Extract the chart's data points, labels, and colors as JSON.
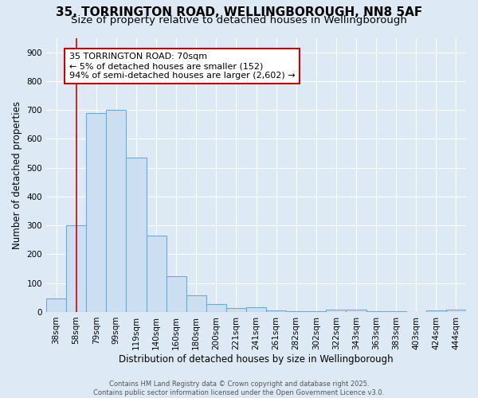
{
  "title_line1": "35, TORRINGTON ROAD, WELLINGBOROUGH, NN8 5AF",
  "title_line2": "Size of property relative to detached houses in Wellingborough",
  "xlabel": "Distribution of detached houses by size in Wellingborough",
  "ylabel": "Number of detached properties",
  "bar_labels": [
    "38sqm",
    "58sqm",
    "79sqm",
    "99sqm",
    "119sqm",
    "140sqm",
    "160sqm",
    "180sqm",
    "200sqm",
    "221sqm",
    "241sqm",
    "261sqm",
    "282sqm",
    "302sqm",
    "322sqm",
    "343sqm",
    "363sqm",
    "383sqm",
    "403sqm",
    "424sqm",
    "444sqm"
  ],
  "bar_values": [
    47,
    300,
    690,
    700,
    535,
    265,
    125,
    58,
    27,
    14,
    16,
    5,
    3,
    2,
    7,
    8,
    3,
    2,
    0,
    5,
    8
  ],
  "bar_color": "#ccdff2",
  "bar_edge_color": "#6aaad4",
  "background_color": "#ddeaf5",
  "grid_color": "#ffffff",
  "annotation_text": "35 TORRINGTON ROAD: 70sqm\n← 5% of detached houses are smaller (152)\n94% of semi-detached houses are larger (2,602) →",
  "annotation_box_color": "#ffffff",
  "annotation_box_edge_color": "#cc0000",
  "redline_x": 1.0,
  "ylim": [
    0,
    950
  ],
  "yticks": [
    0,
    100,
    200,
    300,
    400,
    500,
    600,
    700,
    800,
    900
  ],
  "footnote": "Contains HM Land Registry data © Crown copyright and database right 2025.\nContains public sector information licensed under the Open Government Licence v3.0.",
  "title_fontsize": 11,
  "subtitle_fontsize": 9.5,
  "axis_label_fontsize": 8.5,
  "tick_fontsize": 7.5,
  "annotation_fontsize": 8,
  "footnote_fontsize": 6
}
